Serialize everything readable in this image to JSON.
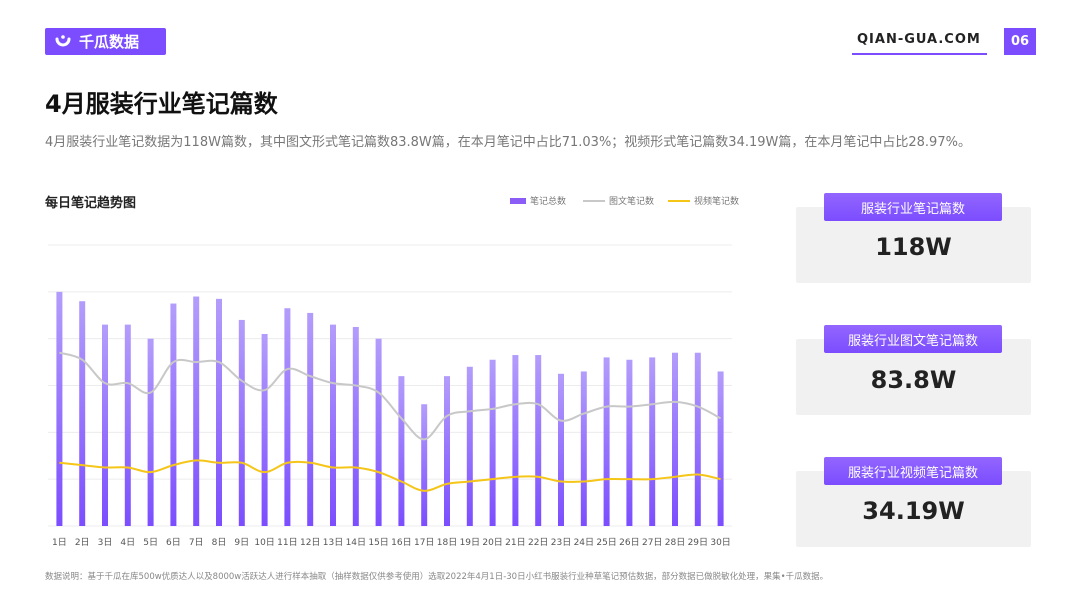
{
  "brand": {
    "logo_text": "千瓜数据",
    "site": "QIAN-GUA.COM",
    "page_number": "06",
    "accent": "#7b4dff"
  },
  "title": "4月服装行业笔记篇数",
  "description": "4月服装行业笔记数据为118W篇数，其中图文形式笔记篇数83.8W篇，在本月笔记中占比71.03%；视频形式笔记篇数34.19W篇，在本月笔记中占比28.97%。",
  "chart_title": "每日笔记趋势图",
  "legend": {
    "total": "笔记总数",
    "image": "图文笔记数",
    "video": "视频笔记数"
  },
  "chart_data": {
    "type": "bar",
    "categories": [
      "1日",
      "2日",
      "3日",
      "4日",
      "5日",
      "6日",
      "7日",
      "8日",
      "9日",
      "10日",
      "11日",
      "12日",
      "13日",
      "14日",
      "15日",
      "16日",
      "17日",
      "18日",
      "19日",
      "20日",
      "21日",
      "22日",
      "23日",
      "24日",
      "25日",
      "26日",
      "27日",
      "28日",
      "29日",
      "30日"
    ],
    "ylim": [
      0,
      60
    ],
    "grid": true,
    "legend_position": "top-right",
    "series": [
      {
        "name": "笔记总数",
        "type": "bar",
        "color": "#8b5cf6",
        "values": [
          50,
          48,
          43,
          43,
          40,
          47.5,
          49,
          48.5,
          44,
          41,
          46.5,
          45.5,
          43,
          42.5,
          40,
          32,
          26,
          32,
          34,
          35.5,
          36.5,
          36.5,
          32.5,
          33,
          36,
          35.5,
          36,
          37,
          37,
          33
        ]
      },
      {
        "name": "图文笔记数",
        "type": "line",
        "color": "#c8c8c8",
        "values": [
          37,
          35.5,
          30.5,
          30.5,
          28.5,
          35,
          35,
          35,
          31,
          29,
          33.5,
          32,
          30.5,
          30,
          28.5,
          23,
          18.5,
          23.5,
          24.5,
          25,
          26,
          26,
          22.5,
          24,
          25.5,
          25.5,
          26,
          26.5,
          25.5,
          23
        ]
      },
      {
        "name": "视频笔记数",
        "type": "line",
        "color": "#f5c518",
        "values": [
          13.5,
          13,
          12.5,
          12.5,
          11.5,
          13,
          14,
          13.5,
          13.5,
          11.5,
          13.5,
          13.5,
          12.5,
          12.5,
          11.5,
          9.5,
          7.5,
          9,
          9.5,
          10,
          10.5,
          10.5,
          9.5,
          9.5,
          10,
          10,
          10,
          10.5,
          11,
          10
        ]
      }
    ]
  },
  "cards": [
    {
      "label": "服装行业笔记篇数",
      "value": "118W"
    },
    {
      "label": "服装行业图文笔记篇数",
      "value": "83.8W"
    },
    {
      "label": "服装行业视频笔记篇数",
      "value": "34.19W"
    }
  ],
  "footnote": "数据说明：基于千瓜在库500w优质达人以及8000w活跃达人进行样本抽取（抽样数据仅供参考使用）选取2022年4月1日-30日小红书服装行业种草笔记预估数据，部分数据已做脱敏化处理，果集•千瓜数据。"
}
